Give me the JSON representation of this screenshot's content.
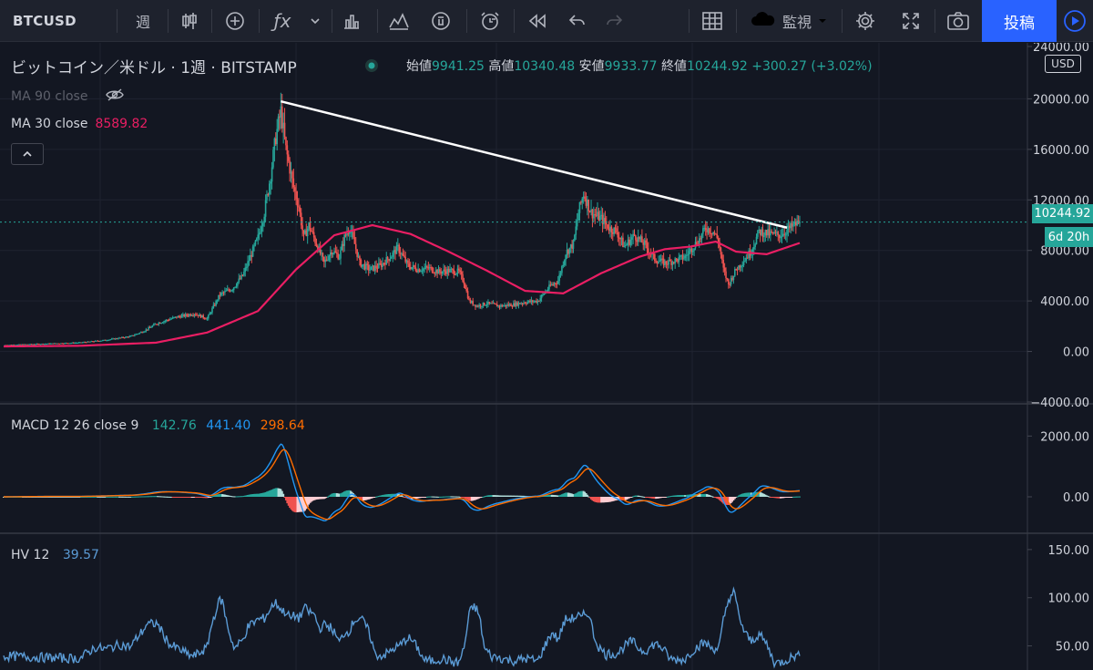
{
  "toolbar": {
    "symbol": "BTCUSD",
    "timeframe": "週",
    "watch_label": "監視",
    "publish_label": "投稿"
  },
  "legend": {
    "title": "ビットコイン／米ドル · 1週 · BITSTAMP",
    "open_label": "始値",
    "open": "9941.25",
    "high_label": "高値",
    "high": "10340.48",
    "low_label": "安値",
    "low": "9933.77",
    "close_label": "終値",
    "close": "10244.92",
    "change": "+300.27 (+3.02%)",
    "ma90": "MA 90 close",
    "ma30": "MA 30 close",
    "ma30_value": "8589.82",
    "macd_label": "MACD 12 26 close 9",
    "macd_hist": "142.76",
    "macd_line": "441.40",
    "macd_signal": "298.64",
    "hv_label": "HV 12",
    "hv_value": "39.57"
  },
  "axis": {
    "currency": "USD",
    "price_tag": "10244.92",
    "countdown": "6d 20h",
    "price_ticks": [
      "24000.00",
      "20000.00",
      "16000.00",
      "12000.00",
      "8000.00",
      "4000.00",
      "0.00",
      "−4000.00"
    ],
    "macd_ticks": [
      "2000.00",
      "0.00"
    ],
    "hv_ticks": [
      "150.00",
      "100.00",
      "50.00"
    ]
  },
  "colors": {
    "background": "#131722",
    "up": "#26a69a",
    "down": "#ef5350",
    "ma30": "#e91e63",
    "macd_line": "#2196f3",
    "macd_signal": "#ff6d00",
    "hv": "#5b9bd5",
    "accent": "#2962ff"
  },
  "chart_data": {
    "type": "candlestick",
    "ylim": [
      -4000,
      24000
    ],
    "close_series": [
      [
        0,
        500
      ],
      [
        30,
        600
      ],
      [
        60,
        700
      ],
      [
        80,
        900
      ],
      [
        100,
        1200
      ],
      [
        110,
        1600
      ],
      [
        120,
        2200
      ],
      [
        135,
        2700
      ],
      [
        150,
        3000
      ],
      [
        160,
        2600
      ],
      [
        170,
        4500
      ],
      [
        180,
        5000
      ],
      [
        188,
        6000
      ],
      [
        200,
        9000
      ],
      [
        205,
        11000
      ],
      [
        210,
        14000
      ],
      [
        214,
        17000
      ],
      [
        218,
        19000
      ],
      [
        222,
        16000
      ],
      [
        228,
        13000
      ],
      [
        232,
        11500
      ],
      [
        236,
        9000
      ],
      [
        240,
        10000
      ],
      [
        246,
        8500
      ],
      [
        252,
        7000
      ],
      [
        258,
        8000
      ],
      [
        264,
        7500
      ],
      [
        268,
        9000
      ],
      [
        272,
        9800
      ],
      [
        276,
        8500
      ],
      [
        280,
        7000
      ],
      [
        288,
        6500
      ],
      [
        296,
        6800
      ],
      [
        304,
        7500
      ],
      [
        310,
        8200
      ],
      [
        318,
        6800
      ],
      [
        326,
        6500
      ],
      [
        334,
        6600
      ],
      [
        342,
        6300
      ],
      [
        350,
        6400
      ],
      [
        358,
        6300
      ],
      [
        362,
        5500
      ],
      [
        366,
        4000
      ],
      [
        372,
        3600
      ],
      [
        380,
        3800
      ],
      [
        390,
        3600
      ],
      [
        400,
        3700
      ],
      [
        410,
        3900
      ],
      [
        420,
        4000
      ],
      [
        430,
        5200
      ],
      [
        436,
        5600
      ],
      [
        442,
        7800
      ],
      [
        448,
        8500
      ],
      [
        452,
        11000
      ],
      [
        456,
        12500
      ],
      [
        462,
        11000
      ],
      [
        470,
        10500
      ],
      [
        476,
        9800
      ],
      [
        482,
        9500
      ],
      [
        488,
        8300
      ],
      [
        496,
        9200
      ],
      [
        504,
        8500
      ],
      [
        512,
        7300
      ],
      [
        520,
        7000
      ],
      [
        528,
        7200
      ],
      [
        536,
        7500
      ],
      [
        542,
        8300
      ],
      [
        548,
        9000
      ],
      [
        552,
        9800
      ],
      [
        558,
        9500
      ],
      [
        562,
        8800
      ],
      [
        566,
        6500
      ],
      [
        570,
        5300
      ],
      [
        576,
        6500
      ],
      [
        582,
        7200
      ],
      [
        588,
        8000
      ],
      [
        594,
        9500
      ],
      [
        602,
        9300
      ],
      [
        610,
        9200
      ],
      [
        616,
        9600
      ],
      [
        622,
        10000
      ],
      [
        626,
        10245
      ]
    ],
    "ma30_series": [
      [
        0,
        400
      ],
      [
        60,
        450
      ],
      [
        120,
        700
      ],
      [
        160,
        1500
      ],
      [
        200,
        3200
      ],
      [
        230,
        6500
      ],
      [
        260,
        9200
      ],
      [
        290,
        10000
      ],
      [
        320,
        9300
      ],
      [
        350,
        7900
      ],
      [
        380,
        6400
      ],
      [
        410,
        4800
      ],
      [
        440,
        4600
      ],
      [
        470,
        6200
      ],
      [
        500,
        7500
      ],
      [
        520,
        8100
      ],
      [
        540,
        8300
      ],
      [
        560,
        8700
      ],
      [
        576,
        7900
      ],
      [
        600,
        7700
      ],
      [
        626,
        8590
      ]
    ],
    "trendline": {
      "from": [
        218,
        19800
      ],
      "to": [
        616,
        9800
      ]
    },
    "macd": {
      "ylim": [
        -1200,
        3000
      ],
      "histogram_last": 142.76,
      "macd_last": 441.4,
      "signal_last": 298.64
    },
    "hv": {
      "ylim": [
        25,
        165
      ],
      "last": 39.57
    }
  }
}
